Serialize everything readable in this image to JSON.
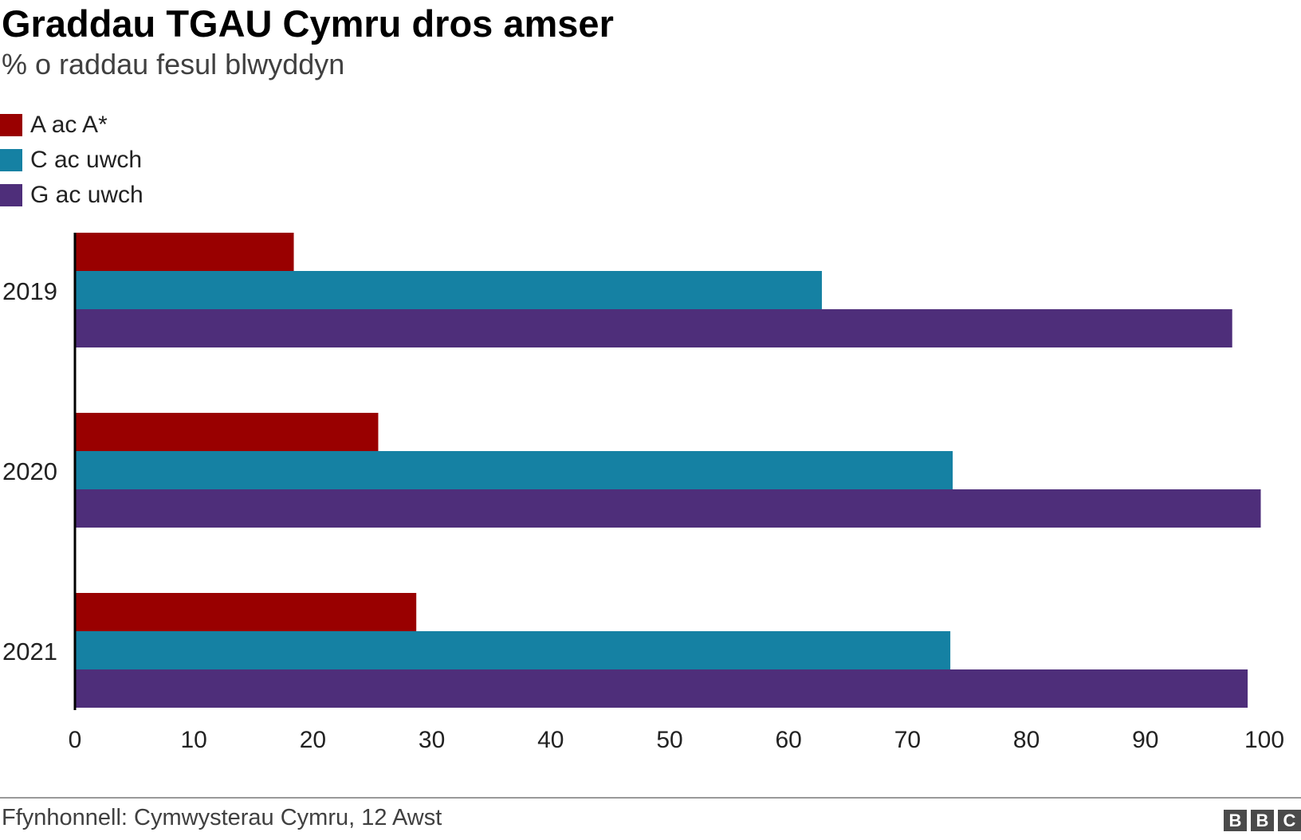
{
  "header": {
    "title": "Graddau TGAU Cymru dros amser",
    "subtitle": "% o raddau fesul blwyddyn"
  },
  "legend": [
    {
      "label": "A ac A*",
      "color": "#990000"
    },
    {
      "label": "C ac uwch",
      "color": "#1581a3"
    },
    {
      "label": "G ac uwch",
      "color": "#4e2e7a"
    }
  ],
  "chart_data": {
    "type": "bar",
    "orientation": "horizontal",
    "title": "Graddau TGAU Cymru dros amser",
    "subtitle": "% o raddau fesul blwyddyn",
    "xlabel": "",
    "ylabel": "",
    "categories": [
      "2019",
      "2020",
      "2021"
    ],
    "series": [
      {
        "name": "A ac A*",
        "color": "#990000",
        "values": [
          18.4,
          25.5,
          28.7
        ]
      },
      {
        "name": "C ac uwch",
        "color": "#1581a3",
        "values": [
          62.8,
          73.8,
          73.6
        ]
      },
      {
        "name": "G ac uwch",
        "color": "#4e2e7a",
        "values": [
          97.3,
          99.7,
          98.6
        ]
      }
    ],
    "xlim": [
      0,
      100
    ],
    "xticks": [
      0,
      10,
      20,
      30,
      40,
      50,
      60,
      70,
      80,
      90,
      100
    ],
    "grid": false,
    "legend_position": "top-left"
  },
  "footer": {
    "source": "Ffynhonnell: Cymwysterau Cymru, 12 Awst",
    "logo_letters": [
      "B",
      "B",
      "C"
    ]
  }
}
